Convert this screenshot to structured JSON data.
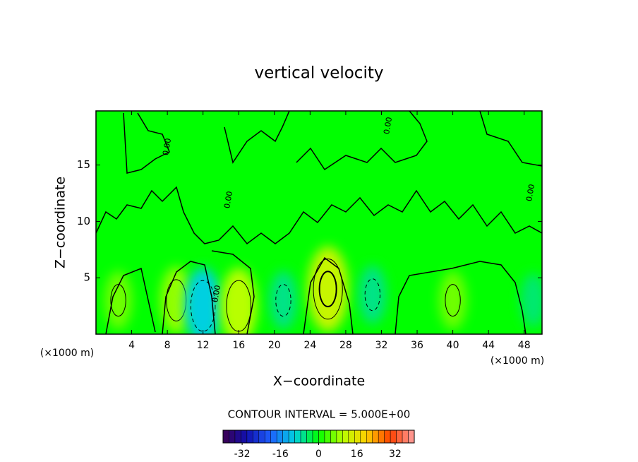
{
  "chart_data": {
    "type": "contour",
    "title": "vertical velocity",
    "xlabel": "X−coordinate",
    "ylabel": "Z−coordinate",
    "x_unit": "(×1000 m)",
    "contour_interval": "CONTOUR INTERVAL = 5.000E+00",
    "contour_label": "0.00",
    "xlim": [
      0,
      50
    ],
    "xticks": [
      4,
      8,
      12,
      16,
      20,
      24,
      28,
      32,
      36,
      40,
      44,
      48
    ],
    "ylim": [
      0,
      19.8
    ],
    "yticks": [
      5,
      10,
      15
    ],
    "background_value": 0,
    "features": [
      {
        "x": 2.5,
        "z": 3,
        "value": 6
      },
      {
        "x": 9,
        "z": 3,
        "value": 8
      },
      {
        "x": 12,
        "z": 2.5,
        "value": -10
      },
      {
        "x": 16,
        "z": 2.5,
        "value": 10
      },
      {
        "x": 21,
        "z": 3,
        "value": -6
      },
      {
        "x": 26,
        "z": 4,
        "value": 12
      },
      {
        "x": 31,
        "z": 3.5,
        "value": -6
      },
      {
        "x": 40,
        "z": 3,
        "value": 6
      },
      {
        "x": 49,
        "z": 3,
        "value": -5
      }
    ],
    "colorbar": {
      "lim": [
        -40,
        40
      ],
      "ticks": [
        -32,
        -16,
        0,
        16,
        32
      ],
      "stops": [
        -40,
        -30,
        -20,
        -10,
        0,
        10,
        20,
        30,
        40
      ],
      "colors": [
        "#3c0050",
        "#1010b0",
        "#1e60ff",
        "#00d0e0",
        "#00ff00",
        "#b8ff00",
        "#ffd000",
        "#ff4000",
        "#ffa0a0"
      ]
    }
  }
}
